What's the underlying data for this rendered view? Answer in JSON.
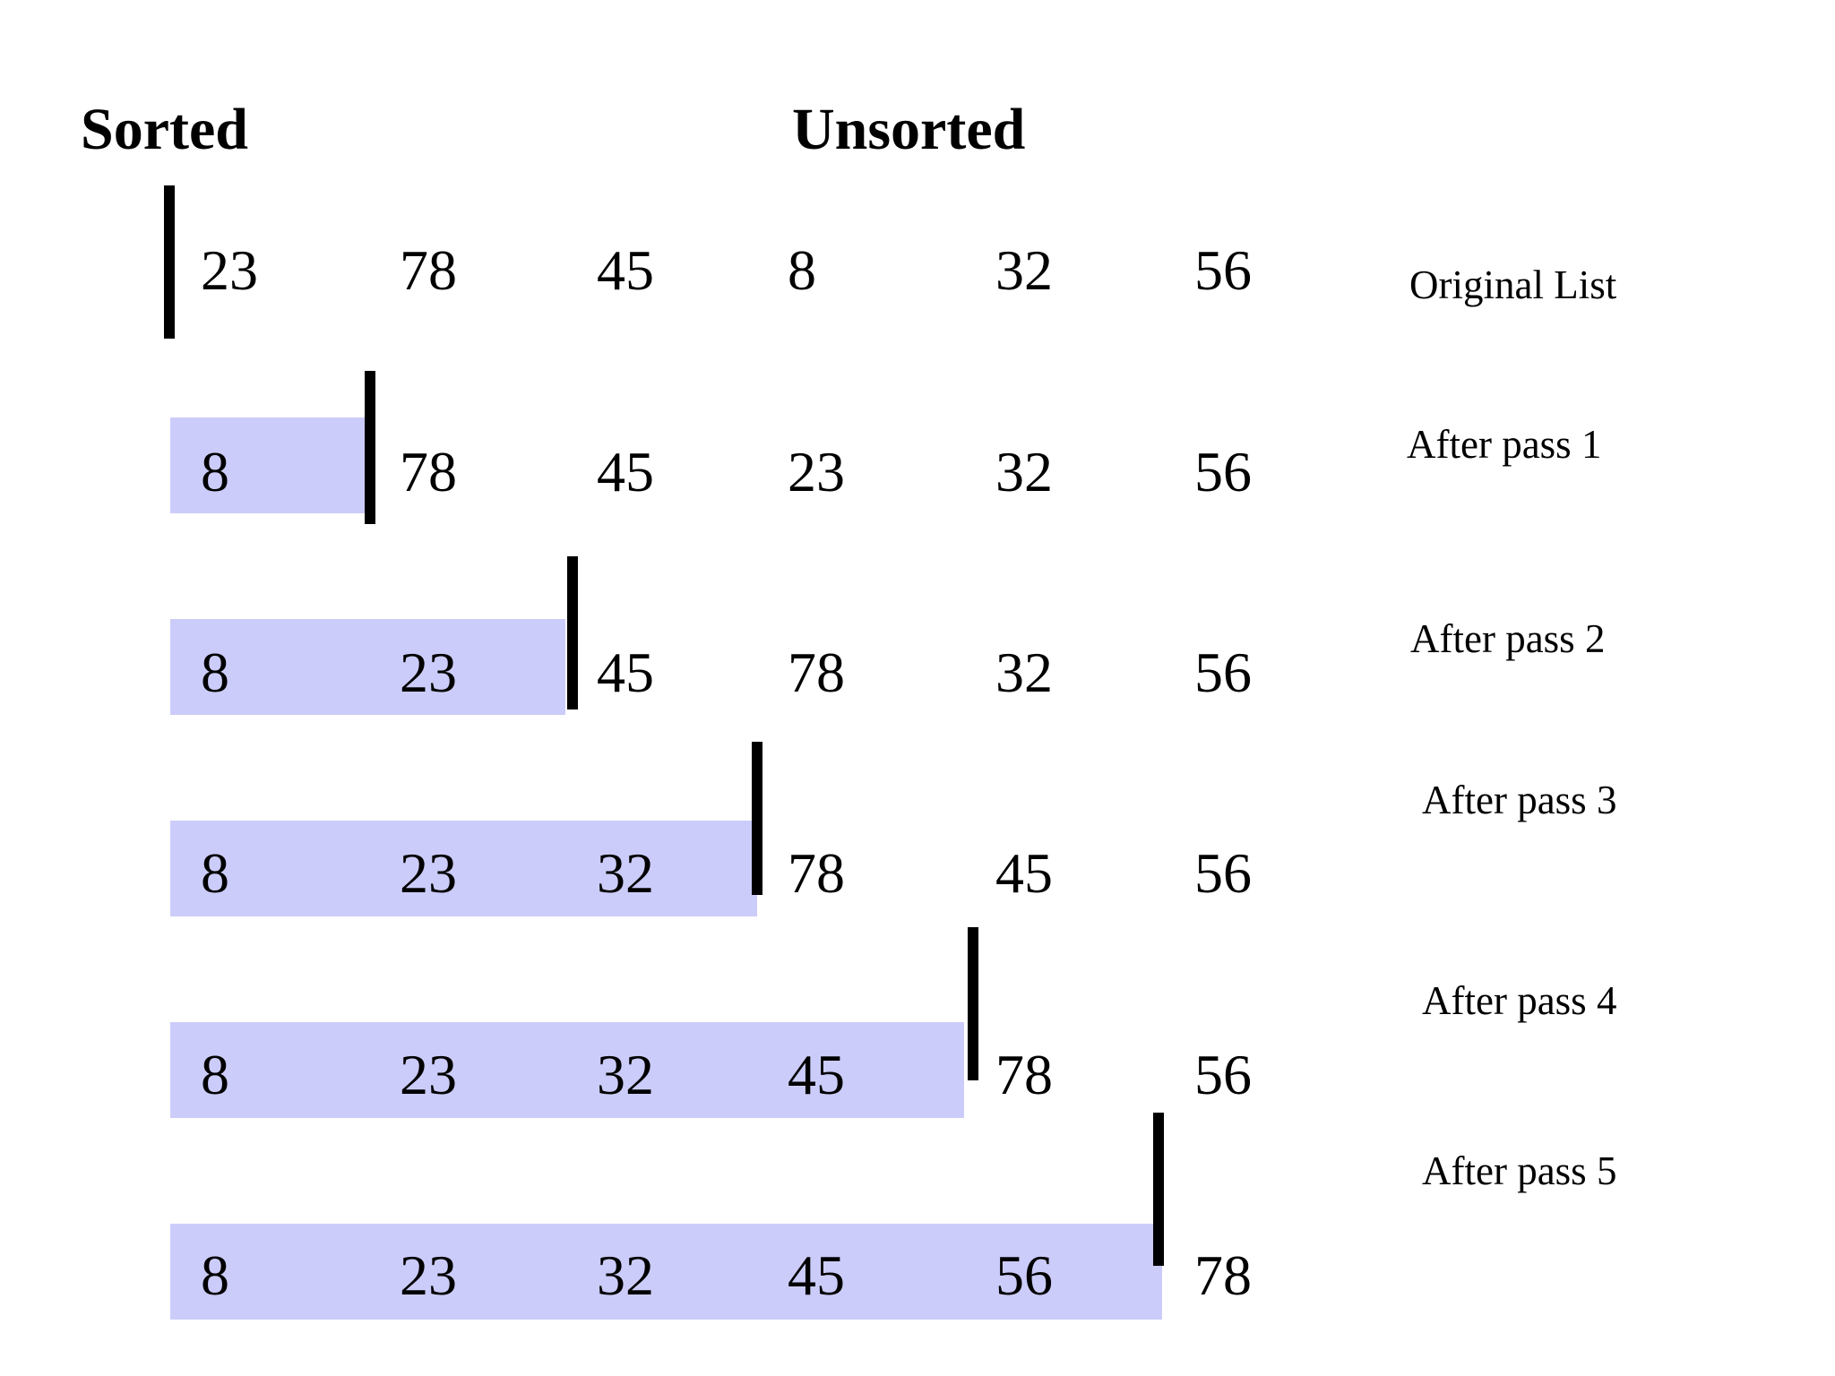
{
  "headers": {
    "sorted": "Sorted",
    "unsorted": "Unsorted"
  },
  "rows": [
    {
      "values": [
        23,
        78,
        45,
        8,
        32,
        56
      ],
      "label": "Original List"
    },
    {
      "values": [
        8,
        78,
        45,
        23,
        32,
        56
      ],
      "label": "After pass 1"
    },
    {
      "values": [
        8,
        23,
        45,
        78,
        32,
        56
      ],
      "label": "After pass 2"
    },
    {
      "values": [
        8,
        23,
        32,
        78,
        45,
        56
      ],
      "label": "After pass 3"
    },
    {
      "values": [
        8,
        23,
        32,
        45,
        78,
        56
      ],
      "label": "After pass 4"
    },
    {
      "values": [
        8,
        23,
        32,
        45,
        56,
        78
      ],
      "label": "After pass 5"
    }
  ]
}
